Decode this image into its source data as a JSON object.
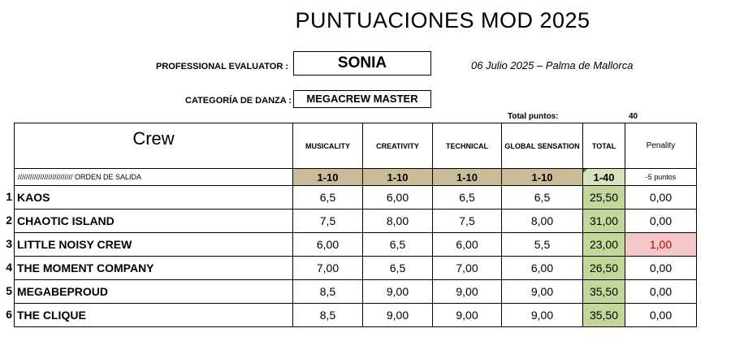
{
  "title": "PUNTUACIONES MOD 2025",
  "evaluator": {
    "label": "PROFESSIONAL EVALUATOR :",
    "value": "SONIA"
  },
  "date_place": "06 Julio 2025 – Palma de Mallorca",
  "category": {
    "label": "CATEGORÍA DE DANZA :",
    "value": "MEGACREW MASTER"
  },
  "total_points": {
    "label": "Total puntos:",
    "value": "40"
  },
  "table": {
    "crew_header": "Crew",
    "columns": [
      "MUSICALITY",
      "CREATIVITY",
      "TECHNICAL",
      "GLOBAL SENSATION",
      "TOTAL",
      "Penality"
    ],
    "order_label": "///////////////////////////  ORDEN DE SALIDA",
    "ranges": [
      "1-10",
      "1-10",
      "1-10",
      "1-10",
      "1-40",
      "-5 puntos"
    ],
    "rows": [
      {
        "n": "1",
        "name": "KAOS",
        "mus": "6,5",
        "cre": "6,00",
        "tec": "6,5",
        "glo": "6,5",
        "total": "25,50",
        "pen": "0,00"
      },
      {
        "n": "2",
        "name": "CHAOTIC ISLAND",
        "mus": "7,5",
        "cre": "8,00",
        "tec": "7,5",
        "glo": "8,00",
        "total": "31,00",
        "pen": "0,00"
      },
      {
        "n": "3",
        "name": "LITTLE NOISY CREW",
        "mus": "6,00",
        "cre": "6,5",
        "tec": "6,00",
        "glo": "5,5",
        "total": "23,00",
        "pen": "1,00"
      },
      {
        "n": "4",
        "name": "THE MOMENT COMPANY",
        "mus": "7,00",
        "cre": "6,5",
        "tec": "7,00",
        "glo": "6,00",
        "total": "26,50",
        "pen": "0,00"
      },
      {
        "n": "5",
        "name": "MEGABEPROUD",
        "mus": "8,5",
        "cre": "9,00",
        "tec": "9,00",
        "glo": "9,00",
        "total": "35,50",
        "pen": "0,00"
      },
      {
        "n": "6",
        "name": "THE CLIQUE",
        "mus": "8,5",
        "cre": "9,00",
        "tec": "9,00",
        "glo": "9,00",
        "total": "35,50",
        "pen": "0,00"
      }
    ]
  }
}
